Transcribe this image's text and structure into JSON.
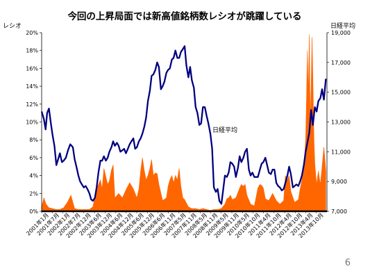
{
  "slide": {
    "title": "今回の上昇局面では新高値銘柄数レシオが跳躍している",
    "page_number": "6"
  },
  "chart_data": {
    "type": "line+area",
    "title": "今回の上昇局面では新高値銘柄数レシオが跳躍している",
    "y_left": {
      "label": "レシオ",
      "ticks": [
        "0%",
        "2%",
        "4%",
        "6%",
        "8%",
        "10%",
        "12%",
        "14%",
        "16%",
        "18%",
        "20%"
      ],
      "ylim": [
        0,
        20
      ],
      "unit": "%"
    },
    "y_right": {
      "label": "日経平均",
      "ticks": [
        "7,000",
        "9,000",
        "11,000",
        "13,000",
        "15,000",
        "17,000",
        "19,000"
      ],
      "ylim": [
        7000,
        19000
      ]
    },
    "x_ticks": [
      "2001年1月",
      "2001年7月",
      "2002年1月",
      "2002年7月",
      "2002年12月",
      "2003年6月",
      "2003年12月",
      "2004年6月",
      "2004年12月",
      "2005年6月",
      "2005年12月",
      "2006年6月",
      "2006年11月",
      "2007年5月",
      "2007年11月",
      "2008年5月",
      "2008年11月",
      "2009年5月",
      "2009年11月",
      "2010年5月",
      "2010年10月",
      "2011年4月",
      "2011年10月",
      "2012年4月",
      "2012年10月",
      "2013年4月",
      "2013年10月"
    ],
    "annotation": "日経平均",
    "grid": false,
    "colors": {
      "nikkei": "#000080",
      "ratio": "#ff6600",
      "baseline": "#000000"
    },
    "series": [
      {
        "name": "日経平均",
        "axis": "right",
        "style": "line",
        "x": [
          2001.0,
          2001.1,
          2001.18,
          2001.25,
          2001.33,
          2001.42,
          2001.5,
          2001.58,
          2001.67,
          2001.75,
          2001.83,
          2001.92,
          2002.0,
          2002.1,
          2002.2,
          2002.3,
          2002.42,
          2002.5,
          2002.58,
          2002.67,
          2002.75,
          2002.83,
          2002.92,
          2003.0,
          2003.08,
          2003.17,
          2003.25,
          2003.33,
          2003.42,
          2003.5,
          2003.58,
          2003.67,
          2003.75,
          2003.83,
          2003.92,
          2004.0,
          2004.08,
          2004.17,
          2004.25,
          2004.33,
          2004.42,
          2004.5,
          2004.58,
          2004.67,
          2004.75,
          2004.83,
          2004.92,
          2005.0,
          2005.08,
          2005.17,
          2005.25,
          2005.33,
          2005.42,
          2005.5,
          2005.58,
          2005.67,
          2005.75,
          2005.83,
          2005.92,
          2006.0,
          2006.08,
          2006.17,
          2006.25,
          2006.33,
          2006.42,
          2006.5,
          2006.58,
          2006.67,
          2006.75,
          2006.83,
          2006.92,
          2007.0,
          2007.08,
          2007.17,
          2007.25,
          2007.33,
          2007.42,
          2007.5,
          2007.58,
          2007.67,
          2007.75,
          2007.83,
          2007.92,
          2008.0,
          2008.08,
          2008.17,
          2008.25,
          2008.33,
          2008.42,
          2008.5,
          2008.58,
          2008.67,
          2008.75,
          2008.83,
          2008.92,
          2009.0,
          2009.08,
          2009.17,
          2009.25,
          2009.33,
          2009.42,
          2009.5,
          2009.58,
          2009.67,
          2009.75,
          2009.83,
          2009.92,
          2010.0,
          2010.08,
          2010.17,
          2010.25,
          2010.33,
          2010.42,
          2010.5,
          2010.58,
          2010.67,
          2010.75,
          2010.83,
          2010.92,
          2011.0,
          2011.08,
          2011.17,
          2011.25,
          2011.33,
          2011.42,
          2011.5,
          2011.58,
          2011.67,
          2011.75,
          2011.83,
          2011.92,
          2012.0,
          2012.08,
          2012.17,
          2012.25,
          2012.33,
          2012.42,
          2012.5,
          2012.58,
          2012.67,
          2012.75,
          2012.83,
          2012.92,
          2013.0,
          2013.08,
          2013.17,
          2013.25,
          2013.33,
          2013.42,
          2013.5,
          2013.58,
          2013.67,
          2013.75,
          2013.83,
          2013.92
        ],
        "values": [
          13700,
          13200,
          12500,
          13600,
          13900,
          12900,
          12100,
          11400,
          10100,
          10500,
          10900,
          10300,
          10400,
          10600,
          11100,
          11500,
          11300,
          10500,
          10000,
          9400,
          9000,
          8800,
          8600,
          8700,
          8500,
          8200,
          7800,
          7700,
          7900,
          8600,
          9600,
          10400,
          10400,
          10700,
          10400,
          10600,
          11000,
          11300,
          11700,
          11400,
          11600,
          11400,
          11000,
          11100,
          11200,
          10900,
          11200,
          11500,
          11700,
          11900,
          11200,
          11300,
          11700,
          11900,
          12200,
          12700,
          13300,
          14400,
          15100,
          16100,
          16200,
          16500,
          17000,
          16700,
          15200,
          15400,
          15700,
          16300,
          16500,
          16600,
          17200,
          17300,
          17800,
          17300,
          17300,
          17700,
          17900,
          18100,
          16800,
          16000,
          16700,
          15800,
          15300,
          14000,
          13600,
          12800,
          12900,
          14000,
          14000,
          13400,
          12900,
          12200,
          11200,
          8600,
          8300,
          8500,
          7700,
          7500,
          8400,
          9400,
          9300,
          9600,
          10300,
          10200,
          10000,
          9300,
          9900,
          10700,
          10300,
          10600,
          11000,
          11200,
          9800,
          9400,
          9600,
          9300,
          9300,
          9300,
          9800,
          10200,
          10300,
          10600,
          10100,
          9600,
          9500,
          9800,
          9800,
          8900,
          8700,
          8600,
          8400,
          8500,
          8900,
          9400,
          10000,
          9500,
          8600,
          8700,
          8800,
          8700,
          9000,
          9400,
          10100,
          11000,
          11600,
          12300,
          13800,
          12800,
          14000,
          13700,
          14400,
          14600,
          15200,
          14500,
          15900
        ]
      },
      {
        "name": "新高値銘柄数レシオ",
        "axis": "left",
        "style": "area",
        "x": [
          2001.0,
          2001.1,
          2001.2,
          2001.33,
          2001.5,
          2001.67,
          2001.83,
          2002.0,
          2002.17,
          2002.33,
          2002.5,
          2002.67,
          2002.83,
          2003.0,
          2003.17,
          2003.33,
          2003.5,
          2003.58,
          2003.67,
          2003.75,
          2003.83,
          2004.0,
          2004.08,
          2004.17,
          2004.25,
          2004.33,
          2004.5,
          2004.67,
          2004.83,
          2005.0,
          2005.17,
          2005.33,
          2005.42,
          2005.5,
          2005.58,
          2005.67,
          2005.75,
          2005.83,
          2005.92,
          2006.0,
          2006.08,
          2006.17,
          2006.25,
          2006.33,
          2006.5,
          2006.67,
          2006.75,
          2006.83,
          2006.92,
          2007.0,
          2007.08,
          2007.17,
          2007.25,
          2007.33,
          2007.42,
          2007.5,
          2007.67,
          2007.83,
          2008.0,
          2008.17,
          2008.33,
          2008.5,
          2008.67,
          2008.83,
          2009.0,
          2009.17,
          2009.33,
          2009.42,
          2009.5,
          2009.58,
          2009.67,
          2009.83,
          2010.0,
          2010.08,
          2010.17,
          2010.25,
          2010.33,
          2010.5,
          2010.67,
          2010.83,
          2010.92,
          2011.0,
          2011.08,
          2011.17,
          2011.33,
          2011.5,
          2011.67,
          2011.83,
          2012.0,
          2012.08,
          2012.17,
          2012.25,
          2012.33,
          2012.5,
          2012.67,
          2012.75,
          2012.83,
          2012.92,
          2013.0,
          2013.04,
          2013.08,
          2013.12,
          2013.17,
          2013.21,
          2013.25,
          2013.29,
          2013.33,
          2013.38,
          2013.42,
          2013.5,
          2013.58,
          2013.67,
          2013.75,
          2013.83,
          2013.92
        ],
        "values": [
          0.5,
          1.5,
          0.8,
          0.4,
          0.3,
          0.2,
          0.2,
          0.4,
          1.0,
          1.8,
          0.3,
          0.2,
          0.2,
          0.2,
          0.2,
          0.5,
          2.5,
          3.0,
          3.5,
          2.5,
          4.8,
          3.0,
          3.4,
          4.6,
          5.2,
          1.5,
          2.0,
          1.5,
          2.4,
          3.2,
          2.5,
          1.5,
          2.5,
          4.5,
          6.0,
          4.5,
          3.5,
          4.0,
          4.8,
          5.8,
          4.0,
          4.3,
          4.2,
          3.0,
          1.2,
          1.5,
          2.8,
          3.5,
          4.0,
          3.2,
          4.0,
          3.5,
          4.8,
          2.8,
          1.5,
          1.3,
          0.5,
          0.3,
          0.3,
          0.2,
          0.3,
          0.2,
          0.1,
          0.2,
          0.2,
          0.3,
          0.8,
          1.4,
          1.5,
          1.8,
          1.3,
          1.5,
          2.6,
          3.0,
          2.8,
          3.0,
          1.8,
          0.8,
          0.6,
          2.6,
          3.0,
          2.9,
          2.6,
          1.4,
          1.2,
          2.0,
          1.2,
          0.8,
          1.2,
          4.0,
          3.5,
          4.0,
          2.2,
          1.0,
          1.3,
          2.5,
          3.5,
          5.0,
          8.0,
          12.5,
          18.0,
          13.0,
          19.8,
          10.0,
          14.0,
          19.5,
          15.0,
          8.0,
          5.2,
          3.0,
          4.5,
          3.0,
          5.0,
          7.2,
          4.5
        ]
      }
    ]
  }
}
